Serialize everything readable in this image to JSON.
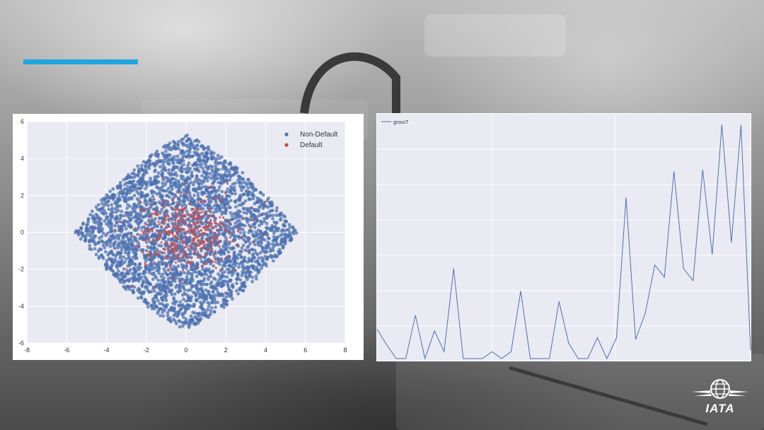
{
  "brand": {
    "logo_text": "IATA",
    "accent_color": "#1fa6e0"
  },
  "chart_data": [
    {
      "type": "scatter",
      "title": "",
      "xlabel": "",
      "ylabel": "",
      "xlim": [
        -8,
        8
      ],
      "ylim": [
        -6,
        6
      ],
      "xticks": [
        "-8",
        "-6",
        "-4",
        "-2",
        "0",
        "2",
        "4",
        "6",
        "8"
      ],
      "yticks": [
        "6",
        "4",
        "2",
        "0",
        "-2",
        "-4",
        "-6"
      ],
      "legend_position": "top-right",
      "grid": true,
      "series": [
        {
          "name": "Non-Default",
          "color": "#4c72b0",
          "distribution": "dense diamond-shaped cloud",
          "x_range": [
            -5.6,
            5.6
          ],
          "y_range": [
            -5.3,
            5.3
          ]
        },
        {
          "name": "Default",
          "color": "#c44e52",
          "distribution": "sparse points concentrated near origin",
          "x_range": [
            -4.0,
            4.0
          ],
          "y_range": [
            -3.0,
            3.0
          ]
        }
      ]
    },
    {
      "type": "line",
      "title": "",
      "xlabel": "",
      "ylabel": "",
      "legend_position": "top-left",
      "grid": true,
      "series": [
        {
          "name": "grossT",
          "color": "#4c72b0",
          "values": [
            0.17,
            0.08,
            0.0,
            0.0,
            0.25,
            0.0,
            0.16,
            0.04,
            0.52,
            0.0,
            0.0,
            0.0,
            0.04,
            0.0,
            0.04,
            0.39,
            0.0,
            0.0,
            0.0,
            0.33,
            0.09,
            0.0,
            0.0,
            0.12,
            0.0,
            0.12,
            0.93,
            0.11,
            0.26,
            0.54,
            0.47,
            1.08,
            0.52,
            0.45,
            1.09,
            0.6,
            1.35,
            0.67,
            1.35,
            0.05
          ]
        }
      ]
    }
  ]
}
